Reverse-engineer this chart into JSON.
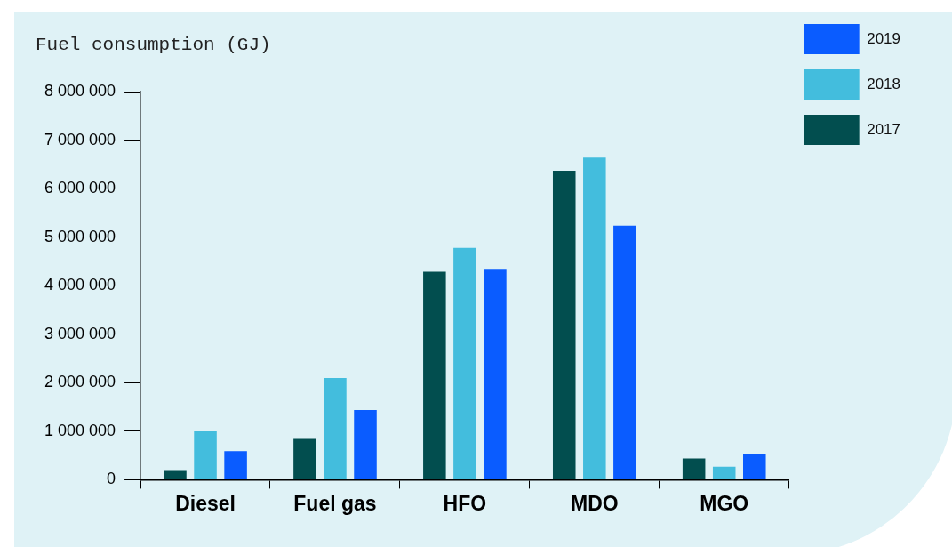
{
  "chart_data": {
    "type": "bar",
    "ylabel": "Fuel consumption (GJ)",
    "categories": [
      "Diesel",
      "Fuel gas",
      "HFO",
      "MDO",
      "MGO"
    ],
    "series": [
      {
        "name": "2017",
        "color": "#024e4f",
        "values": [
          200000,
          840000,
          4290000,
          6370000,
          440000
        ]
      },
      {
        "name": "2018",
        "color": "#43bddd",
        "values": [
          1000000,
          2100000,
          4780000,
          6640000,
          270000
        ]
      },
      {
        "name": "2019",
        "color": "#0a5cff",
        "values": [
          590000,
          1440000,
          4330000,
          5240000,
          540000
        ]
      }
    ],
    "ylim": [
      0,
      8000000
    ],
    "yticks": [
      {
        "value": 0,
        "label": "0"
      },
      {
        "value": 1000000,
        "label": "1 000 000"
      },
      {
        "value": 2000000,
        "label": "2 000 000"
      },
      {
        "value": 3000000,
        "label": "3 000 000"
      },
      {
        "value": 4000000,
        "label": "4 000 000"
      },
      {
        "value": 5000000,
        "label": "5 000 000"
      },
      {
        "value": 6000000,
        "label": "6 000 000"
      },
      {
        "value": 7000000,
        "label": "7 000 000"
      },
      {
        "value": 8000000,
        "label": "8 000 000"
      }
    ],
    "grid": false,
    "legend": "top right"
  }
}
